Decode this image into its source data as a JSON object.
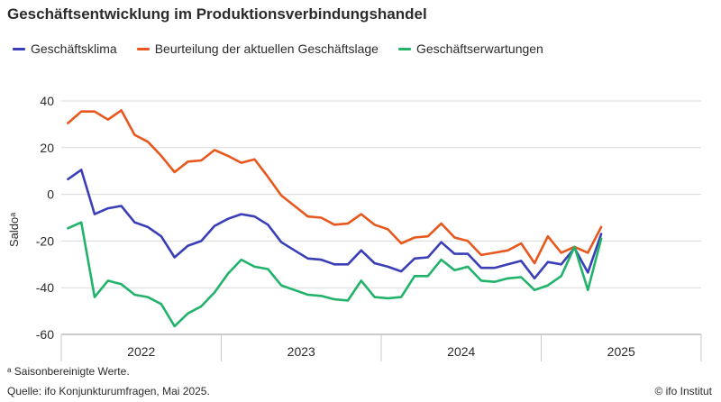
{
  "title": "Geschäftsentwicklung im Produktionsverbindungshandel",
  "footnote": "ᵃ Saisonbereinigte Werte.",
  "source": "Quelle: ifo Konjunkturumfragen, Mai 2025.",
  "copyright": "© ifo Institut",
  "chart_data": {
    "type": "line",
    "ylabel": "Saldoᵃ",
    "ylim": [
      -60,
      40
    ],
    "yticks": [
      -60,
      -40,
      -20,
      0,
      20,
      40
    ],
    "xlim": [
      2021.5,
      2025.5
    ],
    "x_labels": [
      {
        "label": "2022",
        "at": 2022.0
      },
      {
        "label": "2023",
        "at": 2023.0
      },
      {
        "label": "2024",
        "at": 2024.0
      },
      {
        "label": "2025",
        "at": 2025.0
      }
    ],
    "grid": true,
    "legend": "top-left",
    "x_start": "2021-07",
    "x_step": "monthly",
    "series": [
      {
        "name": "Geschäftsklima",
        "color": "#3a3fb8",
        "values": [
          6.5,
          10.5,
          -8.5,
          -6,
          -5,
          -12,
          -14,
          -18,
          -27,
          -22,
          -20,
          -13.5,
          -10.5,
          -8.5,
          -9.5,
          -13,
          -20.5,
          -24,
          -27.5,
          -28,
          -30,
          -30,
          -24,
          -29.5,
          -31,
          -33,
          -27.5,
          -27,
          -20.5,
          -25.5,
          -25.5,
          -31.5,
          -31.5,
          -30,
          -28.5,
          -36,
          -29,
          -30,
          -23,
          -33.5,
          -17
        ]
      },
      {
        "name": "Beurteilung der aktuellen Geschäftslage",
        "color": "#e8571e",
        "values": [
          30.5,
          35.5,
          35.5,
          32,
          36,
          25.5,
          22.5,
          16.5,
          9.5,
          14,
          14.5,
          19,
          16.5,
          13.5,
          15,
          7.5,
          -0.5,
          -5,
          -9.5,
          -10,
          -13,
          -12.5,
          -8.5,
          -13,
          -15,
          -21,
          -18.5,
          -18,
          -12.5,
          -18.5,
          -20,
          -26,
          -25,
          -24,
          -21,
          -29.5,
          -18,
          -25,
          -22.5,
          -25,
          -14
        ]
      },
      {
        "name": "Geschäftserwartungen",
        "color": "#22b36b",
        "values": [
          -14.5,
          -12,
          -44,
          -37,
          -38.5,
          -43,
          -44,
          -47,
          -56.5,
          -51,
          -48,
          -42,
          -34,
          -28,
          -31,
          -32,
          -39,
          -41,
          -43,
          -43.5,
          -45,
          -45.5,
          -37,
          -44,
          -44.5,
          -44,
          -35,
          -35,
          -28,
          -32.5,
          -31,
          -37,
          -37.5,
          -36,
          -35.5,
          -41,
          -39,
          -35,
          -22.5,
          -41,
          -19
        ]
      }
    ]
  }
}
